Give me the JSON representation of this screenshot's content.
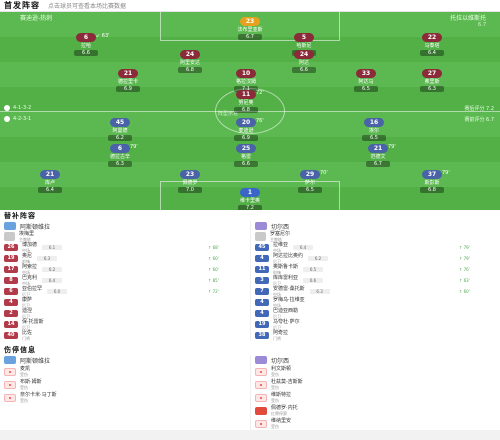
{
  "header": {
    "title": "首发阵容",
    "subtitle": "点击球员可查看本场比赛数据"
  },
  "pitch": {
    "home_label": "赛迪逊-热刺",
    "home_sub": "",
    "away_label": "托拉以维斯托",
    "away_sub": "6.7",
    "home_formation": "4-2-3-1",
    "away_formation": "4-1-3-2",
    "home_rating": "赛前评分 6.7",
    "away_rating": "赛后评分 7.2",
    "center_logo": "阵型示意",
    "away_players": [
      {
        "num": "23",
        "name": "法布里亚斯",
        "rating": "6.7",
        "kind": "gk-away",
        "evt": ""
      },
      {
        "num": "6",
        "name": "拉哈",
        "rating": "6.6",
        "kind": "away",
        "evt": "↙ 63'"
      },
      {
        "num": "24",
        "name": "阿里安达",
        "rating": "6.8",
        "kind": "away",
        "evt": ""
      },
      {
        "num": "5",
        "name": "哈斯尼",
        "rating": "6.5",
        "kind": "away",
        "evt": ""
      },
      {
        "num": "22",
        "name": "马泰塔",
        "rating": "6.4",
        "kind": "away",
        "evt": ""
      },
      {
        "num": "24",
        "name": "阿达",
        "rating": "6.6",
        "kind": "away",
        "evt": ""
      },
      {
        "num": "21",
        "name": "德拉里卡",
        "rating": "6.9",
        "kind": "away",
        "evt": ""
      },
      {
        "num": "33",
        "name": "阿达马",
        "rating": "6.5",
        "kind": "away",
        "evt": ""
      },
      {
        "num": "10",
        "name": "格拉汉姆",
        "rating": "7.1",
        "kind": "away",
        "evt": ""
      },
      {
        "num": "27",
        "name": "弗里斯",
        "rating": "6.3",
        "kind": "away",
        "evt": ""
      },
      {
        "num": "11",
        "name": "努尼奥",
        "rating": "6.8",
        "kind": "away",
        "evt": "72'"
      }
    ],
    "home_players": [
      {
        "num": "45",
        "name": "阿曼德",
        "rating": "6.2",
        "kind": "home",
        "evt": ""
      },
      {
        "num": "20",
        "name": "麦迪逊",
        "rating": "6.9",
        "kind": "home",
        "evt": "76'"
      },
      {
        "num": "16",
        "name": "埃尔",
        "rating": "6.5",
        "kind": "home",
        "evt": ""
      },
      {
        "num": "6",
        "name": "德拉古辛",
        "rating": "6.3",
        "kind": "home",
        "evt": "79'"
      },
      {
        "num": "25",
        "name": "格雷",
        "rating": "6.6",
        "kind": "home",
        "evt": ""
      },
      {
        "num": "21",
        "name": "范德文",
        "rating": "6.7",
        "kind": "home",
        "evt": "79'"
      },
      {
        "num": "21",
        "name": "库卢",
        "rating": "6.4",
        "kind": "home",
        "evt": ""
      },
      {
        "num": "23",
        "name": "佩德罗",
        "rating": "7.0",
        "kind": "home",
        "evt": ""
      },
      {
        "num": "29",
        "name": "萨尔",
        "rating": "6.5",
        "kind": "home",
        "evt": "70'"
      },
      {
        "num": "37",
        "name": "斯彭斯",
        "rating": "6.8",
        "kind": "home",
        "evt": "79'"
      },
      {
        "num": "1",
        "name": "维卡里奥",
        "rating": "7.2",
        "kind": "gk-home",
        "evt": ""
      }
    ]
  },
  "subs": {
    "title": "替补阵容",
    "home": {
      "team": "阿斯顿维拉",
      "coach_name": "埃梅里",
      "coach_role": "主教练",
      "players": [
        {
          "num": "26",
          "name": "博加德",
          "pos": "中场",
          "rt": "6.1",
          "min": "↑ 68'"
        },
        {
          "num": "19",
          "name": "奥尼",
          "pos": "前锋",
          "rt": "6.3",
          "min": "↑ 60'"
        },
        {
          "num": "17",
          "name": "阿索拉",
          "pos": "中场",
          "rt": "6.2",
          "min": "↑ 60'"
        },
        {
          "num": "8",
          "name": "巴克利",
          "pos": "中场",
          "rt": "6.4",
          "min": "↑ 85'"
        },
        {
          "num": "6",
          "name": "亚伯拉罕",
          "pos": "后卫",
          "rt": "6.0",
          "min": "↑ 72'"
        },
        {
          "num": "4",
          "name": "康萨",
          "pos": "后卫",
          "rt": "",
          "min": ""
        },
        {
          "num": "2",
          "name": "迪涅",
          "pos": "后卫",
          "rt": "",
          "min": ""
        },
        {
          "num": "14",
          "name": "保·托雷斯",
          "pos": "后卫",
          "rt": "",
          "min": ""
        },
        {
          "num": "40",
          "name": "比佐",
          "pos": "门将",
          "rt": "",
          "min": ""
        }
      ]
    },
    "away": {
      "team": "切尔西",
      "coach_name": "罗塞尼尔",
      "coach_role": "主教练",
      "players": [
        {
          "num": "45",
          "name": "拉维亚",
          "pos": "中场",
          "rt": "6.4",
          "min": "↑ 79'"
        },
        {
          "num": "4",
          "name": "阿达拉比奥约",
          "pos": "后卫",
          "rt": "6.2",
          "min": "↑ 79'"
        },
        {
          "num": "11",
          "name": "奥斯鲁卡斯",
          "pos": "前锋",
          "rt": "6.5",
          "min": "↑ 76'"
        },
        {
          "num": "3",
          "name": "库库雷利亚",
          "pos": "后卫",
          "rt": "6.6",
          "min": "↑ 63'"
        },
        {
          "num": "7",
          "name": "安德雷·桑托斯",
          "pos": "中场",
          "rt": "6.3",
          "min": "↑ 60'"
        },
        {
          "num": "4",
          "name": "罗梅乌·拉维亚",
          "pos": "中场",
          "rt": "",
          "min": ""
        },
        {
          "num": "4",
          "name": "巴迪亚西勒",
          "pos": "后卫",
          "rt": "",
          "min": ""
        },
        {
          "num": "19",
          "name": "马夸杜·萨尔",
          "pos": "后卫",
          "rt": "",
          "min": ""
        },
        {
          "num": "38",
          "name": "阿奇拉",
          "pos": "门将",
          "rt": "",
          "min": ""
        }
      ]
    }
  },
  "injuries": {
    "title": "伤停信息",
    "home": {
      "team": "阿斯顿维拉",
      "items": [
        {
          "name": "麦凯",
          "status": "受伤",
          "icon": "injury-icon"
        },
        {
          "name": "布斯·姆斯",
          "status": "受伤",
          "icon": "injury-icon"
        },
        {
          "name": "奈尔卡米·马丁斯",
          "status": "受伤",
          "icon": "injury-icon"
        }
      ]
    },
    "away": {
      "team": "切尔西",
      "items": [
        {
          "name": "利文斯顿",
          "status": "受伤",
          "icon": "injury-icon"
        },
        {
          "name": "杜兹莫-吉斯斯",
          "status": "受伤",
          "icon": "injury-icon"
        },
        {
          "name": "维斯特拉",
          "status": "受伤",
          "icon": "injury-icon"
        },
        {
          "name": "佩德罗·内托",
          "status": "红牌停赛",
          "icon": "red-card-icon"
        },
        {
          "name": "维纳里安",
          "status": "受伤",
          "icon": "injury-icon"
        }
      ]
    }
  }
}
